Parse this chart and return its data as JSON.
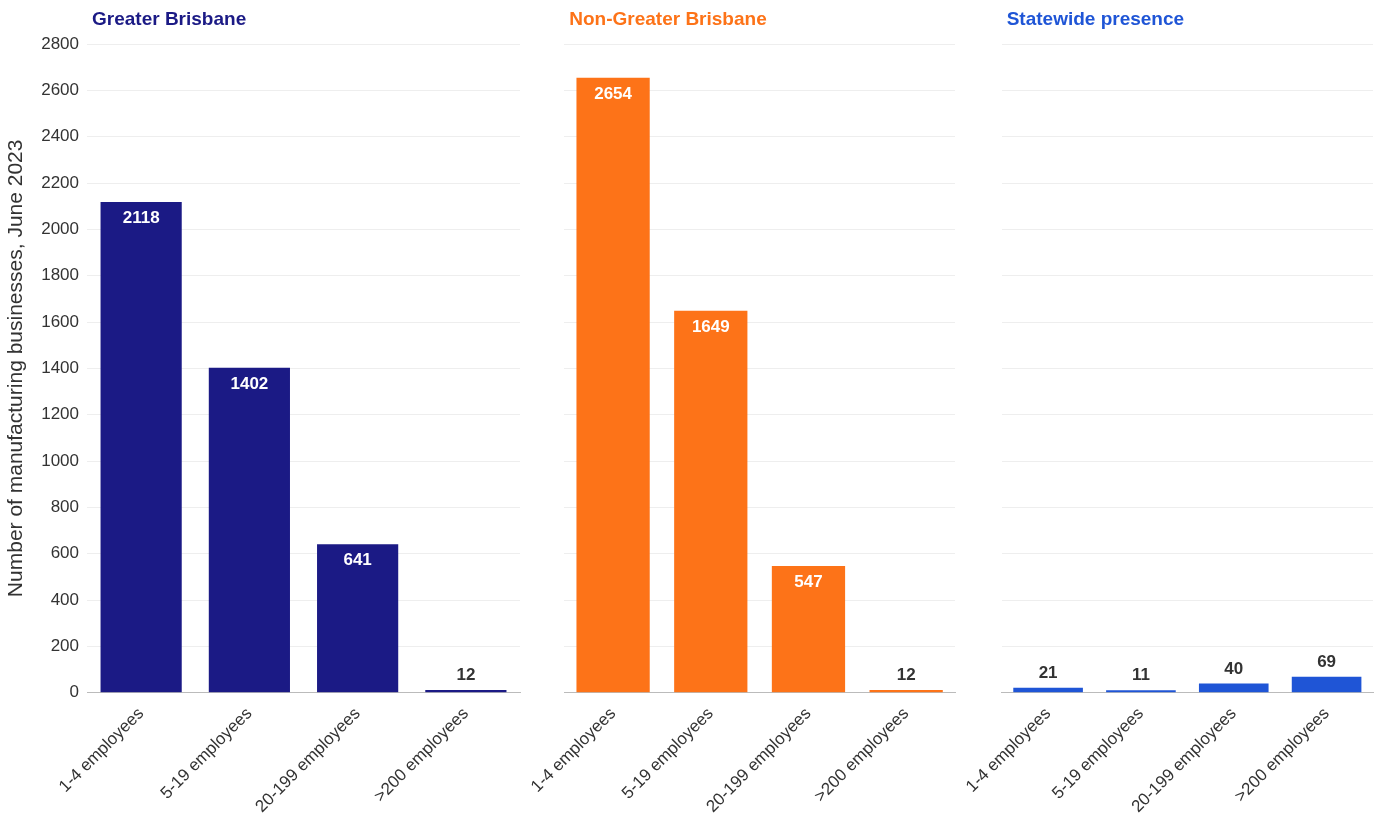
{
  "chart_data": [
    {
      "type": "bar",
      "title": "Greater Brisbane",
      "ylabel": "Number of manufacturing businesses, June 2023",
      "categories": [
        "1-4 employees",
        "5-19 employees",
        "20-199 employees",
        ">200 employees"
      ],
      "values": [
        2118,
        1402,
        641,
        12
      ],
      "color": "#1b1a85",
      "ylim": [
        0,
        2800
      ],
      "yticks": [
        0,
        200,
        400,
        600,
        800,
        1000,
        1200,
        1400,
        1600,
        1800,
        2000,
        2200,
        2400,
        2600,
        2800
      ],
      "grid": "y",
      "data_labels": true
    },
    {
      "type": "bar",
      "title": "Non-Greater Brisbane",
      "categories": [
        "1-4 employees",
        "5-19 employees",
        "20-199 employees",
        ">200 employees"
      ],
      "values": [
        2654,
        1649,
        547,
        12
      ],
      "color": "#fd7318",
      "ylim": [
        0,
        2800
      ],
      "yticks": [
        0,
        200,
        400,
        600,
        800,
        1000,
        1200,
        1400,
        1600,
        1800,
        2000,
        2200,
        2400,
        2600,
        2800
      ],
      "grid": "y",
      "data_labels": true,
      "tick_labels": "x"
    },
    {
      "type": "bar",
      "title": "Statewide presence",
      "categories": [
        "1-4 employees",
        "5-19 employees",
        "20-199 employees",
        ">200 employees"
      ],
      "values": [
        21,
        11,
        40,
        69
      ],
      "color": "#1f55d6",
      "ylim": [
        0,
        2800
      ],
      "yticks": [
        0,
        200,
        400,
        600,
        800,
        1000,
        1200,
        1400,
        1600,
        1800,
        2000,
        2200,
        2400,
        2600,
        2800
      ],
      "grid": "y",
      "data_labels": true,
      "tick_labels": "x"
    }
  ]
}
